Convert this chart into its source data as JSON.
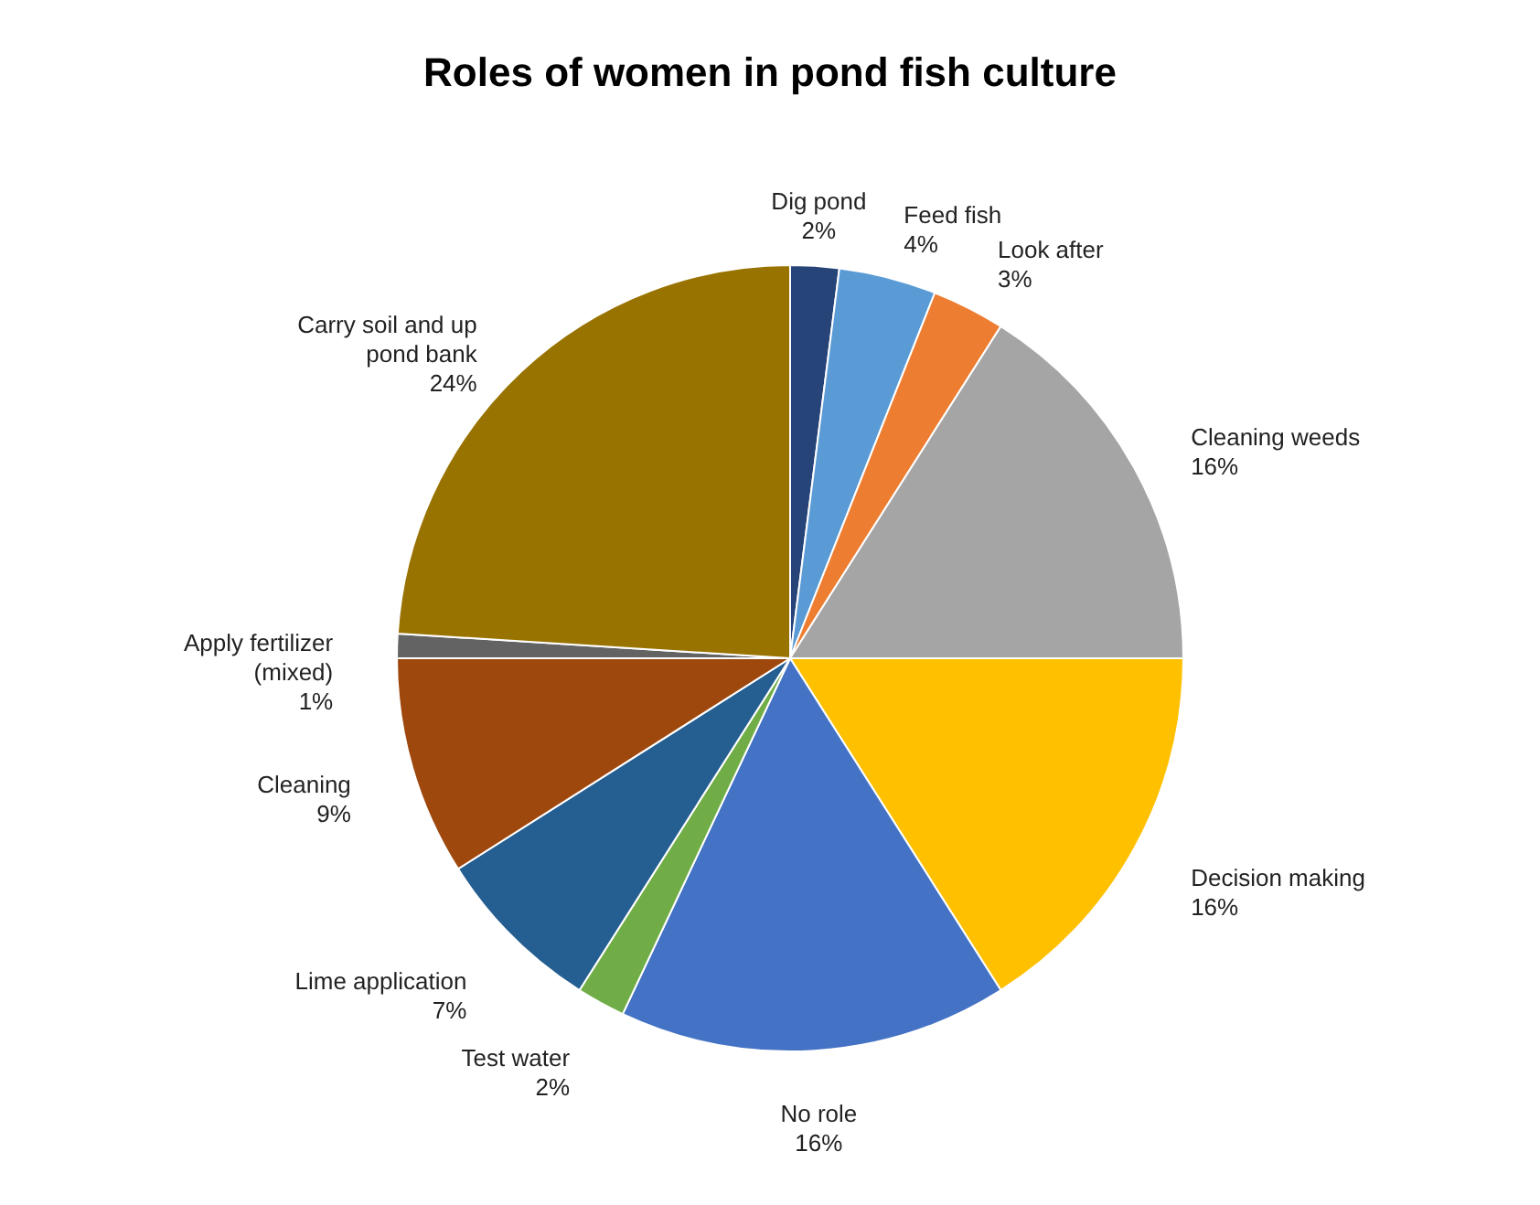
{
  "chart_data": {
    "type": "pie",
    "title": "Roles of women in pond fish culture",
    "categories": [
      "Dig pond",
      "Feed fish",
      "Look after",
      "Cleaning weeds",
      "Decision making",
      "No role",
      "Test water",
      "Lime application",
      "Cleaning",
      "Apply fertilizer (mixed)",
      "Carry soil and up pond bank"
    ],
    "values": [
      2,
      4,
      3,
      16,
      16,
      16,
      2,
      7,
      9,
      1,
      24
    ],
    "value_labels": [
      "2%",
      "4%",
      "3%",
      "16%",
      "16%",
      "16%",
      "2%",
      "7%",
      "9%",
      "1%",
      "24%"
    ],
    "colors": [
      "#264478",
      "#5b9bd5",
      "#ed7d31",
      "#a5a5a5",
      "#ffc000",
      "#4472c4",
      "#70ad47",
      "#255e91",
      "#9e480e",
      "#636363",
      "#997300"
    ],
    "legend": false
  }
}
